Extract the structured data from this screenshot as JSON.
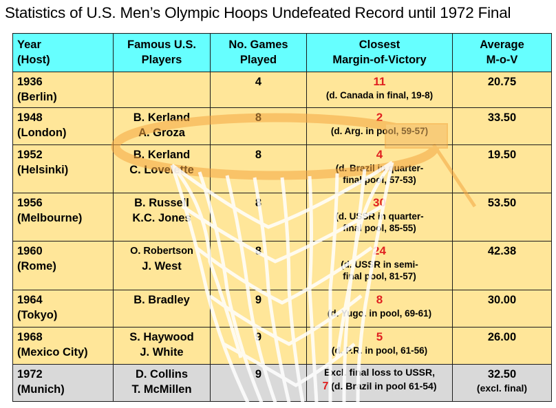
{
  "title": "Statistics of U.S. Men’s Olympic Hoops Undefeated Record until 1972 Final",
  "headers": {
    "year": [
      "Year",
      "(Host)"
    ],
    "players": [
      "Famous U.S.",
      "Players"
    ],
    "games": [
      "No. Games",
      "Played"
    ],
    "margin": [
      "Closest",
      "Margin-of-Victory"
    ],
    "avg": [
      "Average",
      "M-o-V"
    ]
  },
  "rows": [
    {
      "year": "1936",
      "host": "(Berlin)",
      "players": [
        "",
        ""
      ],
      "games": "4",
      "margin": "11",
      "note": [
        "(d. Canada in final, 19-8)"
      ],
      "avg": "20.75"
    },
    {
      "year": "1948",
      "host": "(London)",
      "players": [
        "B. Kerland",
        "A. Groza"
      ],
      "games": "8",
      "margin": "2",
      "note": [
        "(d. Arg. in pool, 59-57)"
      ],
      "avg": "33.50"
    },
    {
      "year": "1952",
      "host": "(Helsinki)",
      "players": [
        "B. Kerland",
        "C. Lovelette"
      ],
      "games": "8",
      "margin": "4",
      "note": [
        "(d. Brazil in quarter-",
        "final pool, 57-53)"
      ],
      "avg": "19.50"
    },
    {
      "year": "1956",
      "host": "(Melbourne)",
      "players": [
        "B. Russell",
        "K.C. Jones"
      ],
      "games": "8",
      "margin": "30",
      "note": [
        "(d. USSR in quarter-",
        "final pool, 85-55)"
      ],
      "avg": "53.50"
    },
    {
      "year": "1960",
      "host": "(Rome)",
      "players": [
        "O. Robertson",
        "J. West"
      ],
      "games": "8",
      "margin": "24",
      "note": [
        "(d. USSR in semi-",
        "final pool, 81-57)"
      ],
      "avg": "42.38"
    },
    {
      "year": "1964",
      "host": "(Tokyo)",
      "players": [
        "B. Bradley",
        ""
      ],
      "games": "9",
      "margin": "8",
      "note": [
        "(d. Yugo. in pool, 69-61)"
      ],
      "avg": "30.00"
    },
    {
      "year": "1968",
      "host": "(Mexico City)",
      "players": [
        "S. Haywood",
        "J. White"
      ],
      "games": "9",
      "margin": "5",
      "note": [
        "(d. P.R. in pool, 61-56)"
      ],
      "avg": "26.00"
    }
  ],
  "last_row": {
    "year": "1972",
    "host": "(Munich)",
    "players": [
      "D. Collins",
      "T. McMillen"
    ],
    "games": "9",
    "note_line1": "Excl. final loss to USSR,",
    "margin": "7",
    "note_line2": " (d. Brazil in pool 61-54)",
    "avg": "32.50",
    "avg_note": "(excl. final)"
  }
}
